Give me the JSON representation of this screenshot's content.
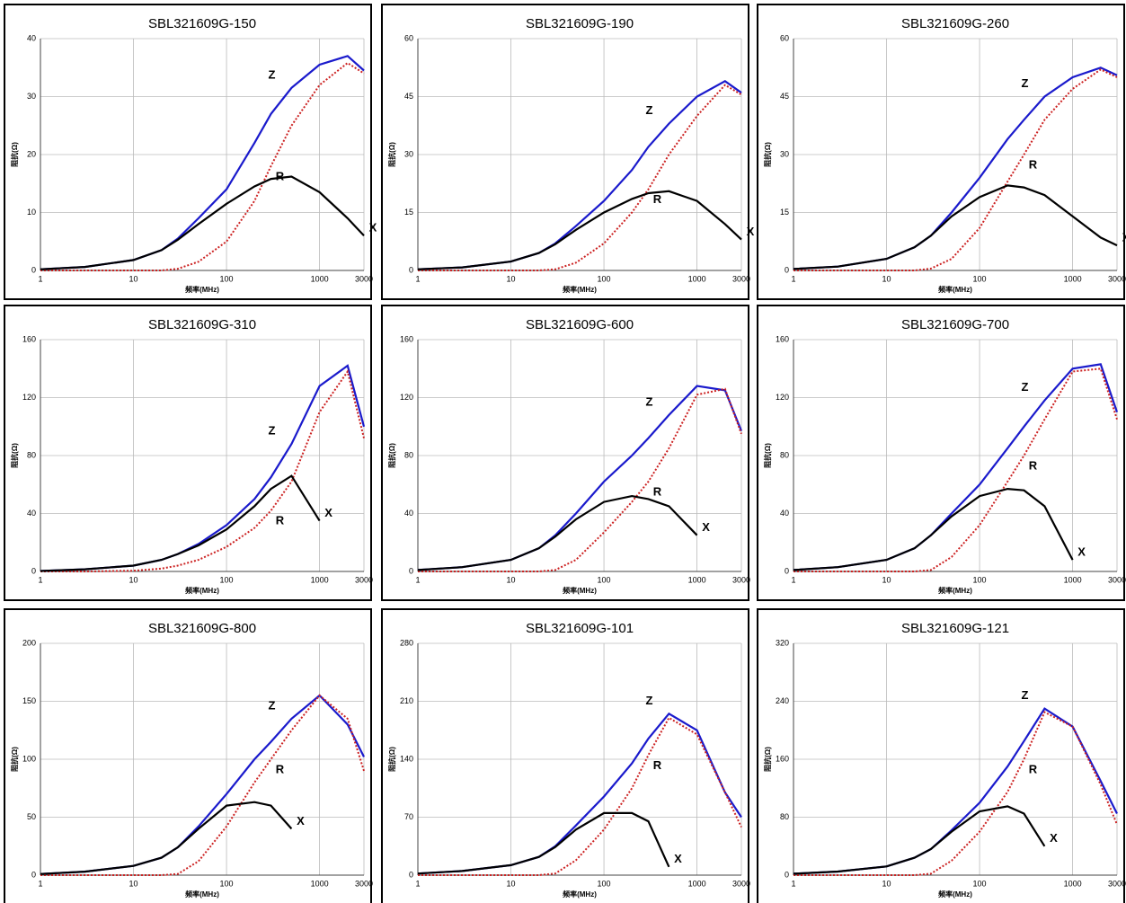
{
  "chart_data": [
    {
      "type": "line",
      "title": "SBL321609G-150",
      "xlabel": "频率(MHz)",
      "ylabel": "阻抗(Ω)",
      "xscale": "log",
      "grid": true,
      "x": [
        1,
        3,
        10,
        20,
        30,
        50,
        100,
        200,
        300,
        500,
        1000,
        2000,
        3000
      ],
      "xlim": [
        1,
        3000
      ],
      "xticks": [
        1,
        10,
        100,
        1000,
        3000
      ],
      "ylim": [
        0,
        40
      ],
      "yticks": [
        0,
        10,
        20,
        30,
        40
      ],
      "series": [
        {
          "name": "Z",
          "color": "#1a1acc",
          "style": "solid",
          "values": [
            0.2,
            0.6,
            1.8,
            3.5,
            5.5,
            9,
            14,
            22,
            27,
            31.5,
            35.5,
            37,
            34.5
          ]
        },
        {
          "name": "R",
          "color": "#cc2222",
          "style": "dotted",
          "values": [
            0,
            0,
            0,
            0,
            0.3,
            1.5,
            5,
            12,
            18,
            25,
            32,
            35.8,
            34
          ]
        },
        {
          "name": "X",
          "color": "#000000",
          "style": "solid",
          "values": [
            0.2,
            0.6,
            1.8,
            3.5,
            5.3,
            8,
            11.5,
            14.5,
            15.8,
            16.2,
            13.5,
            9,
            6
          ]
        }
      ]
    },
    {
      "type": "line",
      "title": "SBL321609G-190",
      "xlabel": "频率(MHz)",
      "ylabel": "阻抗(Ω)",
      "xscale": "log",
      "grid": true,
      "x": [
        1,
        3,
        10,
        20,
        30,
        50,
        100,
        200,
        300,
        500,
        1000,
        2000,
        3000
      ],
      "xlim": [
        1,
        3000
      ],
      "xticks": [
        1,
        10,
        100,
        1000,
        3000
      ],
      "ylim": [
        0,
        60
      ],
      "yticks": [
        0,
        15,
        30,
        45,
        60
      ],
      "series": [
        {
          "name": "Z",
          "color": "#1a1acc",
          "style": "solid",
          "values": [
            0.3,
            0.8,
            2.3,
            4.5,
            7,
            11.5,
            18,
            26,
            32,
            38,
            45,
            49,
            46
          ]
        },
        {
          "name": "R",
          "color": "#cc2222",
          "style": "dotted",
          "values": [
            0,
            0,
            0,
            0,
            0.3,
            2,
            7,
            15,
            21,
            30,
            40,
            48,
            45.5
          ]
        },
        {
          "name": "X",
          "color": "#000000",
          "style": "solid",
          "values": [
            0.3,
            0.8,
            2.3,
            4.5,
            6.8,
            10.5,
            15,
            18.5,
            20,
            20.5,
            18,
            12,
            8
          ]
        }
      ]
    },
    {
      "type": "line",
      "title": "SBL321609G-260",
      "xlabel": "频率(MHz)",
      "ylabel": "阻抗(Ω)",
      "xscale": "log",
      "grid": true,
      "x": [
        1,
        3,
        10,
        20,
        30,
        50,
        100,
        200,
        300,
        500,
        1000,
        2000,
        3000
      ],
      "xlim": [
        1,
        3000
      ],
      "xticks": [
        1,
        10,
        100,
        1000,
        3000
      ],
      "ylim": [
        0,
        60
      ],
      "yticks": [
        0,
        15,
        30,
        45,
        60
      ],
      "series": [
        {
          "name": "Z",
          "color": "#1a1acc",
          "style": "solid",
          "values": [
            0.4,
            1,
            3,
            6,
            9,
            15,
            24,
            34,
            39,
            45,
            50,
            52.5,
            50.5
          ]
        },
        {
          "name": "R",
          "color": "#cc2222",
          "style": "dotted",
          "values": [
            0,
            0,
            0,
            0,
            0.5,
            3,
            11,
            23,
            30,
            39,
            47,
            52,
            50
          ]
        },
        {
          "name": "X",
          "color": "#000000",
          "style": "solid",
          "values": [
            0.4,
            1,
            3,
            6,
            9,
            14,
            19,
            22,
            21.5,
            19.5,
            14,
            8.5,
            6.5
          ]
        }
      ]
    },
    {
      "type": "line",
      "title": "SBL321609G-310",
      "xlabel": "频率(MHz)",
      "ylabel": "阻抗(Ω)",
      "xscale": "log",
      "grid": true,
      "x": [
        1,
        3,
        10,
        20,
        30,
        50,
        100,
        200,
        300,
        500,
        1000,
        2000,
        3000
      ],
      "xlim": [
        1,
        3000
      ],
      "xticks": [
        1,
        10,
        100,
        1000,
        3000
      ],
      "ylim": [
        0,
        160
      ],
      "yticks": [
        0,
        40,
        80,
        120,
        160
      ],
      "series": [
        {
          "name": "Z",
          "color": "#1a1acc",
          "style": "solid",
          "values": [
            0.3,
            1.5,
            4,
            8,
            12,
            19,
            32,
            50,
            65,
            88,
            128,
            142,
            100
          ]
        },
        {
          "name": "R",
          "color": "#cc2222",
          "style": "dotted",
          "values": [
            0,
            0,
            0.5,
            2,
            4,
            8,
            17,
            30,
            42,
            62,
            110,
            138,
            92
          ]
        },
        {
          "name": "X",
          "color": "#000000",
          "style": "solid",
          "values": [
            0.3,
            1.5,
            4,
            8,
            12,
            18,
            29,
            45,
            57,
            66,
            35,
            null,
            null
          ]
        }
      ]
    },
    {
      "type": "line",
      "title": "SBL321609G-600",
      "xlabel": "频率(MHz)",
      "ylabel": "阻抗(Ω)",
      "xscale": "log",
      "grid": true,
      "x": [
        1,
        3,
        10,
        20,
        30,
        50,
        100,
        200,
        300,
        500,
        1000,
        2000,
        3000
      ],
      "xlim": [
        1,
        3000
      ],
      "xticks": [
        1,
        10,
        100,
        1000,
        3000
      ],
      "ylim": [
        0,
        160
      ],
      "yticks": [
        0,
        40,
        80,
        120,
        160
      ],
      "series": [
        {
          "name": "Z",
          "color": "#1a1acc",
          "style": "solid",
          "values": [
            1,
            3,
            8,
            16,
            25,
            40,
            62,
            80,
            92,
            108,
            128,
            125,
            97
          ]
        },
        {
          "name": "R",
          "color": "#cc2222",
          "style": "dotted",
          "values": [
            0,
            0,
            0,
            0,
            1,
            8,
            27,
            48,
            62,
            85,
            122,
            126,
            95
          ]
        },
        {
          "name": "X",
          "color": "#000000",
          "style": "solid",
          "values": [
            1,
            3,
            8,
            16,
            24,
            36,
            48,
            52,
            50,
            45,
            25,
            null,
            null
          ]
        }
      ]
    },
    {
      "type": "line",
      "title": "SBL321609G-700",
      "xlabel": "频率(MHz)",
      "ylabel": "阻抗(Ω)",
      "xscale": "log",
      "grid": true,
      "x": [
        1,
        3,
        10,
        20,
        30,
        50,
        100,
        200,
        300,
        500,
        1000,
        2000,
        3000
      ],
      "xlim": [
        1,
        3000
      ],
      "xticks": [
        1,
        10,
        100,
        1000,
        3000
      ],
      "ylim": [
        0,
        160
      ],
      "yticks": [
        0,
        40,
        80,
        120,
        160
      ],
      "series": [
        {
          "name": "Z",
          "color": "#1a1acc",
          "style": "solid",
          "values": [
            1,
            3,
            8,
            16,
            25,
            40,
            60,
            85,
            100,
            118,
            140,
            143,
            110
          ]
        },
        {
          "name": "R",
          "color": "#cc2222",
          "style": "dotted",
          "values": [
            0,
            0,
            0,
            0,
            1,
            10,
            32,
            62,
            80,
            105,
            138,
            140,
            105
          ]
        },
        {
          "name": "X",
          "color": "#000000",
          "style": "solid",
          "values": [
            1,
            3,
            8,
            16,
            25,
            38,
            52,
            57,
            56,
            45,
            8,
            null,
            null
          ]
        }
      ]
    },
    {
      "type": "line",
      "title": "SBL321609G-800",
      "xlabel": "频率(MHz)",
      "ylabel": "阻抗(Ω)",
      "xscale": "log",
      "grid": true,
      "x": [
        1,
        3,
        10,
        20,
        30,
        50,
        100,
        200,
        300,
        500,
        1000,
        2000,
        3000
      ],
      "xlim": [
        1,
        3000
      ],
      "xticks": [
        1,
        10,
        100,
        1000,
        3000
      ],
      "ylim": [
        0,
        200
      ],
      "yticks": [
        0,
        50,
        100,
        150,
        200
      ],
      "series": [
        {
          "name": "Z",
          "color": "#1a1acc",
          "style": "solid",
          "values": [
            1,
            3,
            8,
            15,
            24,
            42,
            70,
            100,
            115,
            135,
            155,
            130,
            102
          ]
        },
        {
          "name": "R",
          "color": "#cc2222",
          "style": "dotted",
          "values": [
            0,
            0,
            0,
            0,
            1,
            12,
            42,
            80,
            100,
            125,
            155,
            135,
            90
          ]
        },
        {
          "name": "X",
          "color": "#000000",
          "style": "solid",
          "values": [
            1,
            3,
            8,
            15,
            24,
            40,
            60,
            63,
            60,
            40,
            null,
            null,
            null
          ]
        }
      ]
    },
    {
      "type": "line",
      "title": "SBL321609G-101",
      "xlabel": "频率(MHz)",
      "ylabel": "阻抗(Ω)",
      "xscale": "log",
      "grid": true,
      "x": [
        1,
        3,
        10,
        20,
        30,
        50,
        100,
        200,
        300,
        500,
        1000,
        2000,
        3000
      ],
      "xlim": [
        1,
        3000
      ],
      "xticks": [
        1,
        10,
        100,
        1000,
        3000
      ],
      "ylim": [
        0,
        280
      ],
      "yticks": [
        0,
        70,
        140,
        210,
        280
      ],
      "series": [
        {
          "name": "Z",
          "color": "#1a1acc",
          "style": "solid",
          "values": [
            2,
            5,
            12,
            22,
            35,
            60,
            95,
            135,
            165,
            195,
            175,
            100,
            70
          ]
        },
        {
          "name": "R",
          "color": "#cc2222",
          "style": "dotted",
          "values": [
            0,
            0,
            0,
            0,
            2,
            18,
            55,
            105,
            145,
            190,
            170,
            100,
            58
          ]
        },
        {
          "name": "X",
          "color": "#000000",
          "style": "solid",
          "values": [
            2,
            5,
            12,
            22,
            34,
            55,
            75,
            75,
            65,
            10,
            null,
            null,
            null
          ]
        }
      ]
    },
    {
      "type": "line",
      "title": "SBL321609G-121",
      "xlabel": "频率(MHz)",
      "ylabel": "阻抗(Ω)",
      "xscale": "log",
      "grid": true,
      "x": [
        1,
        3,
        10,
        20,
        30,
        50,
        100,
        200,
        300,
        500,
        1000,
        2000,
        3000
      ],
      "xlim": [
        1,
        3000
      ],
      "xticks": [
        1,
        10,
        100,
        1000,
        3000
      ],
      "ylim": [
        0,
        320
      ],
      "yticks": [
        0,
        80,
        160,
        240,
        320
      ],
      "series": [
        {
          "name": "Z",
          "color": "#1a1acc",
          "style": "solid",
          "values": [
            2,
            5,
            12,
            24,
            36,
            62,
            100,
            150,
            185,
            230,
            205,
            130,
            85
          ]
        },
        {
          "name": "R",
          "color": "#cc2222",
          "style": "dotted",
          "values": [
            0,
            0,
            0,
            0,
            2,
            20,
            60,
            115,
            160,
            225,
            205,
            125,
            70
          ]
        },
        {
          "name": "X",
          "color": "#000000",
          "style": "solid",
          "values": [
            2,
            5,
            12,
            24,
            36,
            60,
            88,
            95,
            85,
            40,
            null,
            null,
            null
          ]
        }
      ]
    }
  ]
}
